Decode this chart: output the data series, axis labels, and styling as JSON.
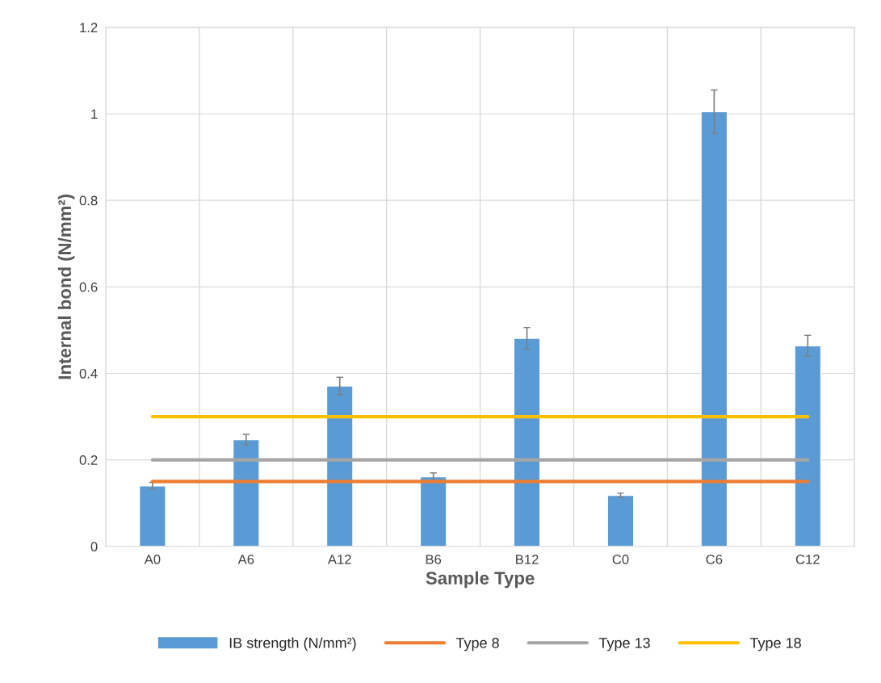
{
  "chart_data": {
    "type": "bar",
    "xlabel": "Sample Type",
    "ylabel": "Internal bond (N/mm²)",
    "categories": [
      "A0",
      "A6",
      "A12",
      "B6",
      "B12",
      "C0",
      "C6",
      "C12"
    ],
    "series": [
      {
        "name": "IB strength (N/mm²)",
        "color": "#5b9bd5",
        "values": [
          0.14,
          0.247,
          0.371,
          0.161,
          0.481,
          0.118,
          1.005,
          0.464
        ],
        "errors": [
          0.008,
          0.012,
          0.02,
          0.009,
          0.025,
          0.005,
          0.05,
          0.024
        ]
      },
      {
        "name": "Type 8",
        "type": "line",
        "color": "#ed7d31",
        "values": [
          0.15,
          0.15,
          0.15,
          0.15,
          0.15,
          0.15,
          0.15,
          0.15
        ]
      },
      {
        "name": "Type 13",
        "type": "line",
        "color": "#a5a5a5",
        "values": [
          0.2,
          0.2,
          0.2,
          0.2,
          0.2,
          0.2,
          0.2,
          0.2
        ]
      },
      {
        "name": "Type 18",
        "type": "line",
        "color": "#ffc000",
        "values": [
          0.3,
          0.3,
          0.3,
          0.3,
          0.3,
          0.3,
          0.3,
          0.3
        ]
      }
    ],
    "ylim": [
      0,
      1.2
    ],
    "yticks": [
      0,
      0.2,
      0.4,
      0.6,
      0.8,
      1,
      1.2
    ],
    "grid": true,
    "legend": "bottom"
  }
}
